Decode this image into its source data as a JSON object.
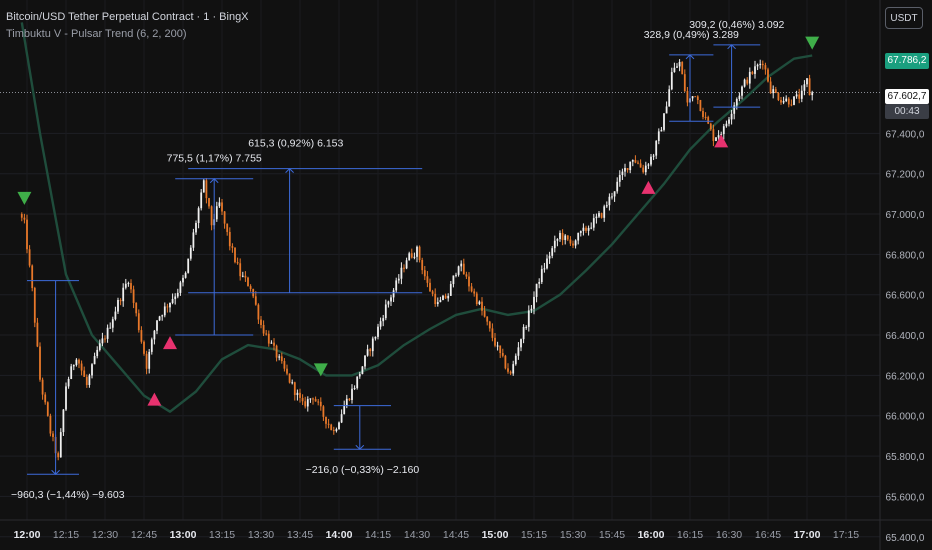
{
  "header": {
    "title": "Bitcoin/USD Tether Perpetual Contract · 1 · BingX",
    "indicator": "Timbuktu V - Pulsar Trend (6, 2, 200)"
  },
  "currency_button": "USDT",
  "price_tags": {
    "ema": "67.786,2",
    "last": "67.602,7",
    "countdown": "00:43"
  },
  "colors": {
    "bull": "#f0f0f0",
    "bear": "#e8782a",
    "ema": "#1f4d3c",
    "measure": "#3d6bdb",
    "buy": "#e8326f",
    "sell": "#3fae49",
    "bg": "#111111"
  },
  "chart_data": {
    "type": "candlestick",
    "title": "Bitcoin/USD Tether Perpetual Contract · 1 · BingX",
    "y_ticks": [
      "67.400,0",
      "67.200,0",
      "67.000,0",
      "66.800,0",
      "66.600,0",
      "66.400,0",
      "66.200,0",
      "66.000,0",
      "65.800,0",
      "65.600,0",
      "65.400,0"
    ],
    "y_range": [
      65400,
      68000
    ],
    "x_ticks": [
      "12:00",
      "12:15",
      "12:30",
      "12:45",
      "13:00",
      "13:15",
      "13:30",
      "13:45",
      "14:00",
      "14:15",
      "14:30",
      "14:45",
      "15:00",
      "15:15",
      "15:30",
      "15:45",
      "16:00",
      "16:15",
      "16:30",
      "16:45",
      "17:00",
      "17:15"
    ],
    "bold_x_ticks": [
      "12:00",
      "13:00",
      "14:00",
      "15:00",
      "16:00",
      "17:00"
    ],
    "price_path_knots": [
      {
        "t": "11:58",
        "p": 67000
      },
      {
        "t": "12:00",
        "p": 66950
      },
      {
        "t": "12:03",
        "p": 66620
      },
      {
        "t": "12:06",
        "p": 66180
      },
      {
        "t": "12:10",
        "p": 65920
      },
      {
        "t": "12:13",
        "p": 65780
      },
      {
        "t": "12:16",
        "p": 66150
      },
      {
        "t": "12:20",
        "p": 66300
      },
      {
        "t": "12:24",
        "p": 66150
      },
      {
        "t": "12:28",
        "p": 66320
      },
      {
        "t": "12:32",
        "p": 66420
      },
      {
        "t": "12:36",
        "p": 66560
      },
      {
        "t": "12:40",
        "p": 66680
      },
      {
        "t": "12:43",
        "p": 66500
      },
      {
        "t": "12:47",
        "p": 66250
      },
      {
        "t": "12:51",
        "p": 66480
      },
      {
        "t": "12:55",
        "p": 66550
      },
      {
        "t": "12:59",
        "p": 66620
      },
      {
        "t": "13:02",
        "p": 66700
      },
      {
        "t": "13:05",
        "p": 66900
      },
      {
        "t": "13:09",
        "p": 67150
      },
      {
        "t": "13:12",
        "p": 66950
      },
      {
        "t": "13:15",
        "p": 67050
      },
      {
        "t": "13:19",
        "p": 66850
      },
      {
        "t": "13:23",
        "p": 66700
      },
      {
        "t": "13:27",
        "p": 66640
      },
      {
        "t": "13:31",
        "p": 66450
      },
      {
        "t": "13:35",
        "p": 66350
      },
      {
        "t": "13:39",
        "p": 66250
      },
      {
        "t": "13:43",
        "p": 66150
      },
      {
        "t": "13:47",
        "p": 66050
      },
      {
        "t": "13:51",
        "p": 66100
      },
      {
        "t": "13:55",
        "p": 66000
      },
      {
        "t": "13:59",
        "p": 65920
      },
      {
        "t": "14:03",
        "p": 66050
      },
      {
        "t": "14:07",
        "p": 66150
      },
      {
        "t": "14:11",
        "p": 66280
      },
      {
        "t": "14:15",
        "p": 66400
      },
      {
        "t": "14:19",
        "p": 66540
      },
      {
        "t": "14:23",
        "p": 66650
      },
      {
        "t": "14:27",
        "p": 66780
      },
      {
        "t": "14:31",
        "p": 66820
      },
      {
        "t": "14:35",
        "p": 66650
      },
      {
        "t": "14:39",
        "p": 66550
      },
      {
        "t": "14:43",
        "p": 66600
      },
      {
        "t": "14:47",
        "p": 66760
      },
      {
        "t": "14:51",
        "p": 66650
      },
      {
        "t": "14:55",
        "p": 66550
      },
      {
        "t": "14:59",
        "p": 66420
      },
      {
        "t": "15:03",
        "p": 66300
      },
      {
        "t": "15:07",
        "p": 66200
      },
      {
        "t": "15:10",
        "p": 66350
      },
      {
        "t": "15:14",
        "p": 66500
      },
      {
        "t": "15:18",
        "p": 66680
      },
      {
        "t": "15:22",
        "p": 66800
      },
      {
        "t": "15:26",
        "p": 66900
      },
      {
        "t": "15:30",
        "p": 66850
      },
      {
        "t": "15:34",
        "p": 66900
      },
      {
        "t": "15:38",
        "p": 66950
      },
      {
        "t": "15:42",
        "p": 67000
      },
      {
        "t": "15:46",
        "p": 67100
      },
      {
        "t": "15:50",
        "p": 67200
      },
      {
        "t": "15:54",
        "p": 67280
      },
      {
        "t": "15:58",
        "p": 67220
      },
      {
        "t": "16:02",
        "p": 67300
      },
      {
        "t": "16:06",
        "p": 67480
      },
      {
        "t": "16:09",
        "p": 67700
      },
      {
        "t": "16:12",
        "p": 67750
      },
      {
        "t": "16:15",
        "p": 67550
      },
      {
        "t": "16:18",
        "p": 67600
      },
      {
        "t": "16:21",
        "p": 67500
      },
      {
        "t": "16:25",
        "p": 67380
      },
      {
        "t": "16:29",
        "p": 67420
      },
      {
        "t": "16:33",
        "p": 67550
      },
      {
        "t": "16:37",
        "p": 67650
      },
      {
        "t": "16:41",
        "p": 67720
      },
      {
        "t": "16:44",
        "p": 67760
      },
      {
        "t": "16:47",
        "p": 67620
      },
      {
        "t": "16:51",
        "p": 67570
      },
      {
        "t": "16:55",
        "p": 67560
      },
      {
        "t": "16:59",
        "p": 67590
      },
      {
        "t": "17:01",
        "p": 67660
      },
      {
        "t": "17:02",
        "p": 67600
      }
    ],
    "ema_knots": [
      {
        "t": "11:58",
        "p": 67950
      },
      {
        "t": "12:05",
        "p": 67400
      },
      {
        "t": "12:15",
        "p": 66700
      },
      {
        "t": "12:25",
        "p": 66400
      },
      {
        "t": "12:35",
        "p": 66250
      },
      {
        "t": "12:45",
        "p": 66100
      },
      {
        "t": "12:55",
        "p": 66020
      },
      {
        "t": "13:05",
        "p": 66120
      },
      {
        "t": "13:15",
        "p": 66280
      },
      {
        "t": "13:25",
        "p": 66350
      },
      {
        "t": "13:35",
        "p": 66330
      },
      {
        "t": "13:45",
        "p": 66280
      },
      {
        "t": "13:55",
        "p": 66200
      },
      {
        "t": "14:05",
        "p": 66200
      },
      {
        "t": "14:15",
        "p": 66250
      },
      {
        "t": "14:25",
        "p": 66350
      },
      {
        "t": "14:35",
        "p": 66430
      },
      {
        "t": "14:45",
        "p": 66500
      },
      {
        "t": "14:55",
        "p": 66530
      },
      {
        "t": "15:05",
        "p": 66500
      },
      {
        "t": "15:15",
        "p": 66520
      },
      {
        "t": "15:25",
        "p": 66600
      },
      {
        "t": "15:35",
        "p": 66720
      },
      {
        "t": "15:45",
        "p": 66850
      },
      {
        "t": "15:55",
        "p": 67000
      },
      {
        "t": "16:05",
        "p": 67150
      },
      {
        "t": "16:15",
        "p": 67320
      },
      {
        "t": "16:25",
        "p": 67450
      },
      {
        "t": "16:35",
        "p": 67560
      },
      {
        "t": "16:45",
        "p": 67680
      },
      {
        "t": "16:55",
        "p": 67770
      },
      {
        "t": "17:02",
        "p": 67786
      }
    ],
    "signals": [
      {
        "type": "sell",
        "t": "11:59",
        "p": 67080
      },
      {
        "type": "buy",
        "t": "12:49",
        "p": 66080
      },
      {
        "type": "buy",
        "t": "12:55",
        "p": 66360
      },
      {
        "type": "sell",
        "t": "13:53",
        "p": 66230
      },
      {
        "type": "buy",
        "t": "15:59",
        "p": 67130
      },
      {
        "type": "buy",
        "t": "16:27",
        "p": 67360
      },
      {
        "type": "sell",
        "t": "17:02",
        "p": 67850
      }
    ],
    "measures": [
      {
        "x1": "12:00",
        "x2": "12:20",
        "x_arrow": "12:11",
        "p_from": 66670,
        "p_to": 65710,
        "dir": "down",
        "label": "−960,3 (−1,44%) −9.603",
        "label_pos": "below"
      },
      {
        "x1": "12:57",
        "x2": "13:27",
        "x_arrow": "13:12",
        "p_from": 66400,
        "p_to": 67175,
        "dir": "up",
        "label": "775,5 (1,17%) 7.755",
        "label_pos": "above"
      },
      {
        "x1": "13:02",
        "x2": "14:32",
        "x_arrow": "13:41",
        "p_from": 66610,
        "p_to": 67225,
        "dir": "up",
        "label": "615,3 (0,92%) 6.153",
        "label_pos": "above_left"
      },
      {
        "x1": "13:58",
        "x2": "14:20",
        "x_arrow": "14:08",
        "p_from": 66050,
        "p_to": 65834,
        "dir": "down",
        "label": "−216,0 (−0,33%) −2.160",
        "label_pos": "below"
      },
      {
        "x1": "16:07",
        "x2": "16:24",
        "x_arrow": "16:15",
        "p_from": 67460,
        "p_to": 67789,
        "dir": "up",
        "label": "328,9 (0,49%) 3.289",
        "label_pos": "above"
      },
      {
        "x1": "16:24",
        "x2": "16:42",
        "x_arrow": "16:31",
        "p_from": 67530,
        "p_to": 67839,
        "dir": "up",
        "label": "309,2 (0,46%) 3.092",
        "label_pos": "above"
      }
    ],
    "last_price": 67602.7,
    "ema_value": 67786.2
  }
}
